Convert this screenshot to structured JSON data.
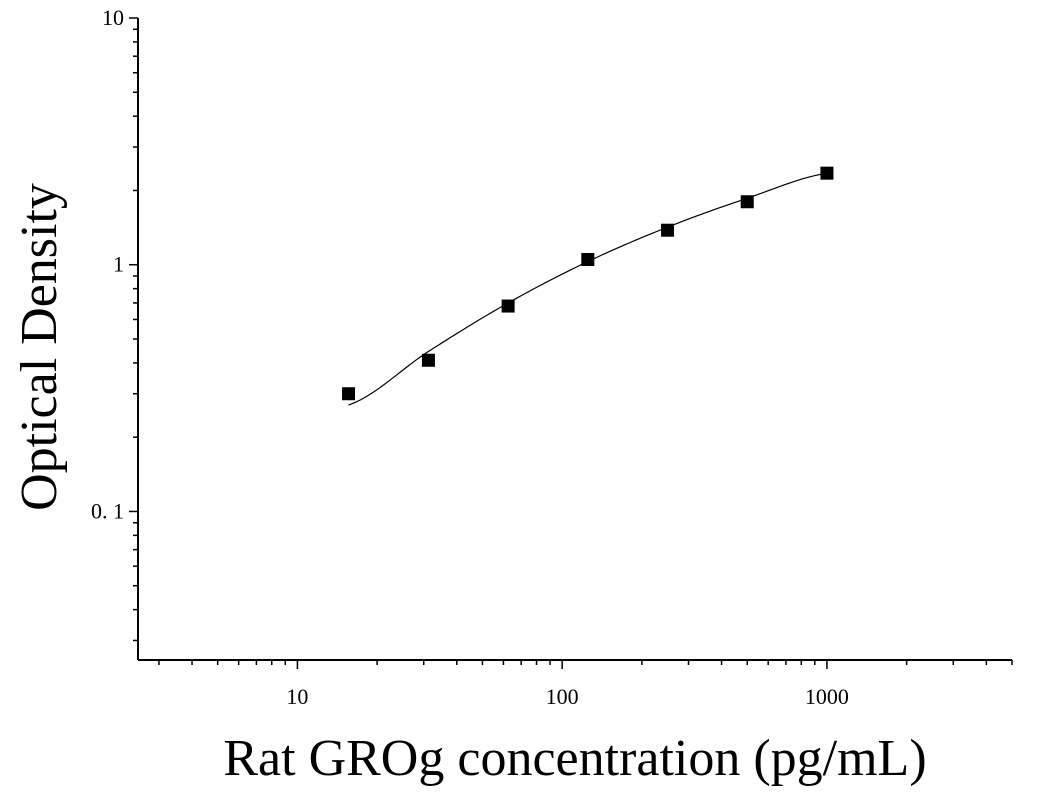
{
  "chart_data": {
    "type": "scatter",
    "title": "",
    "xlabel": "Rat GROg concentration (pg/mL)",
    "ylabel": "Optical Density",
    "x_scale": "log",
    "y_scale": "log",
    "xlim": [
      2.5,
      5000
    ],
    "ylim": [
      0.025,
      10
    ],
    "x_tick_labels": [
      "10",
      "100",
      "1000"
    ],
    "y_tick_labels": [
      "0. 1",
      "1",
      "10"
    ],
    "grid": false,
    "legend": "none",
    "series": [
      {
        "points": [
          {
            "x": 15.6,
            "y": 0.3
          },
          {
            "x": 31.25,
            "y": 0.41
          },
          {
            "x": 62.5,
            "y": 0.68
          },
          {
            "x": 125,
            "y": 1.05
          },
          {
            "x": 250,
            "y": 1.38
          },
          {
            "x": 500,
            "y": 1.8
          },
          {
            "x": 1000,
            "y": 2.35
          }
        ]
      }
    ],
    "fit_curve": {
      "x_range": [
        15.6,
        1000
      ],
      "points": [
        {
          "x": 15.6,
          "y": 0.27
        },
        {
          "x": 31.25,
          "y": 0.445
        },
        {
          "x": 62.5,
          "y": 0.7
        },
        {
          "x": 125,
          "y": 1.03
        },
        {
          "x": 250,
          "y": 1.42
        },
        {
          "x": 500,
          "y": 1.86
        },
        {
          "x": 1000,
          "y": 2.35
        }
      ]
    },
    "colors": {
      "marker": "#000000",
      "line": "#000000",
      "axis": "#000000"
    }
  }
}
